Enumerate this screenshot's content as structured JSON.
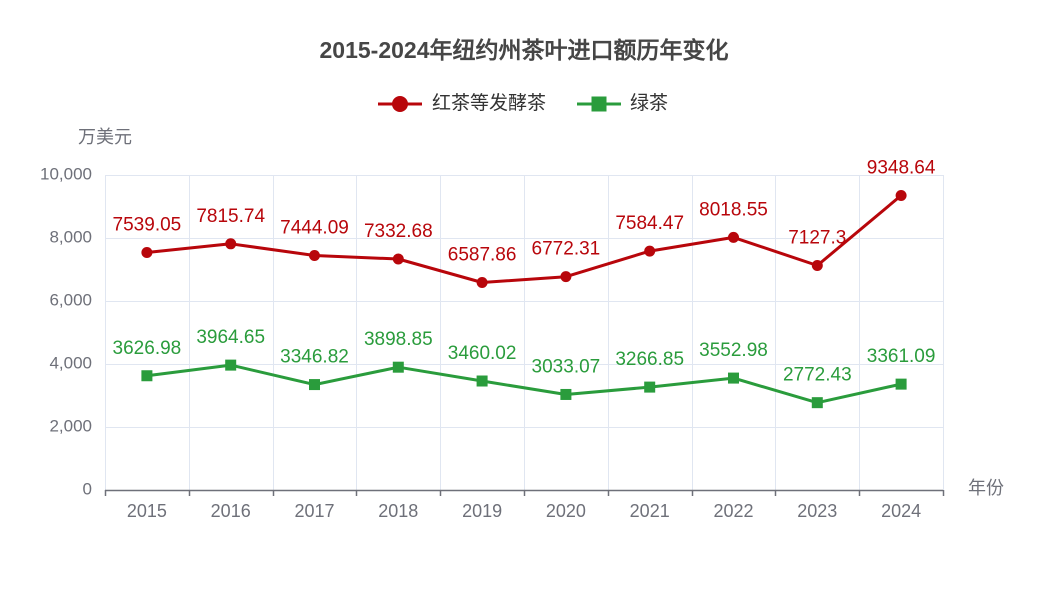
{
  "chart_data": {
    "type": "line",
    "title": "2015-2024年纽约州茶叶进口额历年变化",
    "xlabel": "年份",
    "ylabel": "万美元",
    "categories": [
      "2015",
      "2016",
      "2017",
      "2018",
      "2019",
      "2020",
      "2021",
      "2022",
      "2023",
      "2024"
    ],
    "ylim": [
      0,
      10000
    ],
    "yticks": [
      0,
      2000,
      4000,
      6000,
      8000,
      10000
    ],
    "ytick_labels": [
      "0",
      "2,000",
      "4,000",
      "6,000",
      "8,000",
      "10,000"
    ],
    "grid": true,
    "legend_position": "top-center",
    "series": [
      {
        "name": "红茶等发酵茶",
        "color": "#b8060b",
        "marker": "circle",
        "values": [
          7539.05,
          7815.74,
          7444.09,
          7332.68,
          6587.86,
          6772.31,
          7584.47,
          8018.55,
          7127.3,
          9348.64
        ]
      },
      {
        "name": "绿茶",
        "color": "#2a9c3c",
        "marker": "square",
        "values": [
          3626.98,
          3964.65,
          3346.82,
          3898.85,
          3460.02,
          3033.07,
          3266.85,
          3552.98,
          2772.43,
          3361.09
        ]
      }
    ]
  }
}
